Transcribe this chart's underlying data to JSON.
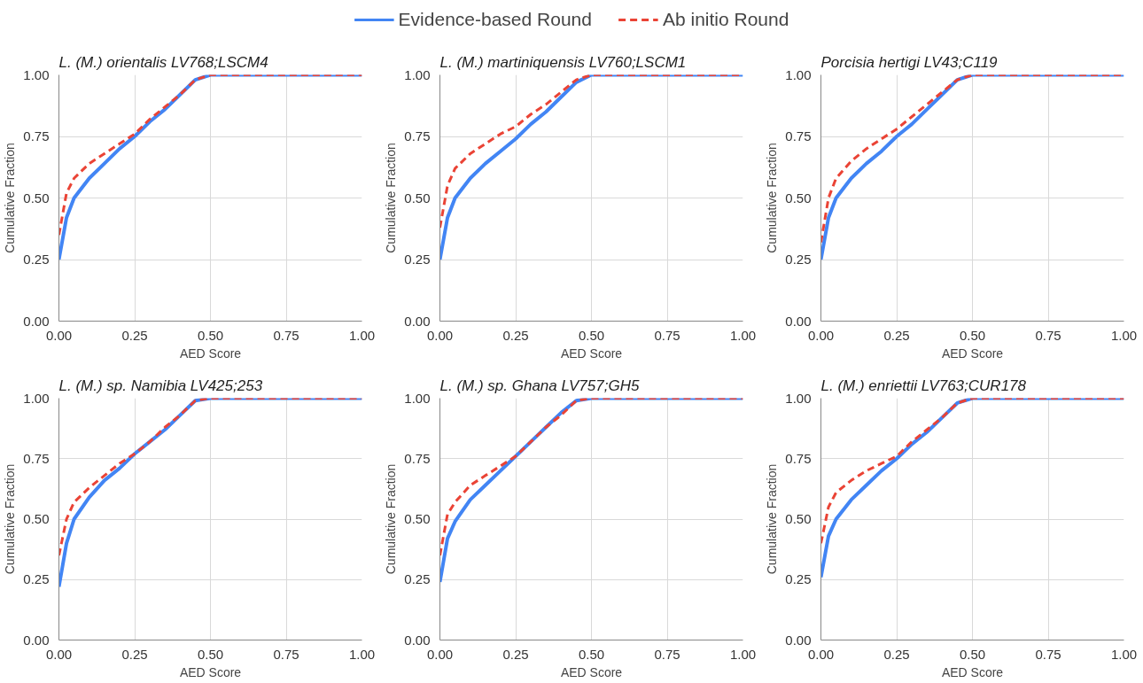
{
  "chart_data": [
    {
      "type": "line",
      "title": "L. (M.) orientalis LV768;LSCM4",
      "xlabel": "AED Score",
      "ylabel": "Cumulative Fraction",
      "legend": "top",
      "grid": true,
      "marker": "none",
      "x": [
        0,
        0.025,
        0.05,
        0.1,
        0.15,
        0.2,
        0.25,
        0.3,
        0.35,
        0.4,
        0.45,
        0.5,
        0.75,
        1.0
      ],
      "xlim": [
        0,
        1
      ],
      "ylim": [
        0,
        1
      ],
      "xticks": [
        {
          "value": 0,
          "label": "0.00"
        },
        {
          "value": 0.25,
          "label": "0.25"
        },
        {
          "value": 0.5,
          "label": "0.50"
        },
        {
          "value": 0.75,
          "label": "0.75"
        },
        {
          "value": 1,
          "label": "1.00"
        }
      ],
      "yticks": [
        {
          "value": 0,
          "label": "0.00"
        },
        {
          "value": 0.25,
          "label": "0.25"
        },
        {
          "value": 0.5,
          "label": "0.50"
        },
        {
          "value": 0.75,
          "label": "0.75"
        },
        {
          "value": 1,
          "label": "1.00"
        }
      ],
      "series": [
        {
          "name": "Evidence-based Round",
          "color": "#4285f4",
          "line_style": "solid",
          "values": [
            0.25,
            0.42,
            0.5,
            0.58,
            0.64,
            0.7,
            0.75,
            0.81,
            0.86,
            0.92,
            0.98,
            1.0,
            1.0,
            1.0
          ]
        },
        {
          "name": "Ab initio Round",
          "color": "#ea4335",
          "line_style": "dashed",
          "values": [
            0.35,
            0.52,
            0.58,
            0.64,
            0.68,
            0.72,
            0.76,
            0.82,
            0.87,
            0.92,
            0.98,
            1.0,
            1.0,
            1.0
          ]
        }
      ]
    },
    {
      "type": "line",
      "title": "L. (M.) martiniquensis LV760;LSCM1",
      "xlabel": "AED Score",
      "ylabel": "Cumulative Fraction",
      "grid": true,
      "marker": "none",
      "x": [
        0,
        0.025,
        0.05,
        0.1,
        0.15,
        0.2,
        0.25,
        0.3,
        0.35,
        0.4,
        0.45,
        0.5,
        0.75,
        1.0
      ],
      "xlim": [
        0,
        1
      ],
      "ylim": [
        0,
        1
      ],
      "xticks": [
        {
          "value": 0,
          "label": "0.00"
        },
        {
          "value": 0.25,
          "label": "0.25"
        },
        {
          "value": 0.5,
          "label": "0.50"
        },
        {
          "value": 0.75,
          "label": "0.75"
        },
        {
          "value": 1,
          "label": "1.00"
        }
      ],
      "yticks": [
        {
          "value": 0,
          "label": "0.00"
        },
        {
          "value": 0.25,
          "label": "0.25"
        },
        {
          "value": 0.5,
          "label": "0.50"
        },
        {
          "value": 0.75,
          "label": "0.75"
        },
        {
          "value": 1,
          "label": "1.00"
        }
      ],
      "series": [
        {
          "color": "#4285f4",
          "line_style": "solid",
          "values": [
            0.25,
            0.42,
            0.5,
            0.58,
            0.64,
            0.69,
            0.74,
            0.8,
            0.85,
            0.91,
            0.97,
            1.0,
            1.0,
            1.0
          ]
        },
        {
          "color": "#ea4335",
          "line_style": "dashed",
          "values": [
            0.38,
            0.55,
            0.62,
            0.68,
            0.72,
            0.76,
            0.79,
            0.84,
            0.88,
            0.93,
            0.98,
            1.0,
            1.0,
            1.0
          ]
        }
      ]
    },
    {
      "type": "line",
      "title": "Porcisia hertigi LV43;C119",
      "xlabel": "AED Score",
      "ylabel": "Cumulative Fraction",
      "grid": true,
      "marker": "none",
      "x": [
        0,
        0.025,
        0.05,
        0.1,
        0.15,
        0.2,
        0.25,
        0.3,
        0.35,
        0.4,
        0.45,
        0.5,
        0.75,
        1.0
      ],
      "xlim": [
        0,
        1
      ],
      "ylim": [
        0,
        1
      ],
      "xticks": [
        {
          "value": 0,
          "label": "0.00"
        },
        {
          "value": 0.25,
          "label": "0.25"
        },
        {
          "value": 0.5,
          "label": "0.50"
        },
        {
          "value": 0.75,
          "label": "0.75"
        },
        {
          "value": 1,
          "label": "1.00"
        }
      ],
      "yticks": [
        {
          "value": 0,
          "label": "0.00"
        },
        {
          "value": 0.25,
          "label": "0.25"
        },
        {
          "value": 0.5,
          "label": "0.50"
        },
        {
          "value": 0.75,
          "label": "0.75"
        },
        {
          "value": 1,
          "label": "1.00"
        }
      ],
      "series": [
        {
          "color": "#4285f4",
          "line_style": "solid",
          "values": [
            0.25,
            0.42,
            0.5,
            0.58,
            0.64,
            0.69,
            0.75,
            0.8,
            0.86,
            0.92,
            0.98,
            1.0,
            1.0,
            1.0
          ]
        },
        {
          "color": "#ea4335",
          "line_style": "dashed",
          "values": [
            0.32,
            0.5,
            0.58,
            0.65,
            0.7,
            0.74,
            0.78,
            0.83,
            0.88,
            0.93,
            0.98,
            1.0,
            1.0,
            1.0
          ]
        }
      ]
    },
    {
      "type": "line",
      "title": "L. (M.) sp. Namibia LV425;253",
      "xlabel": "AED Score",
      "ylabel": "Cumulative Fraction",
      "grid": true,
      "marker": "none",
      "x": [
        0,
        0.025,
        0.05,
        0.1,
        0.15,
        0.2,
        0.25,
        0.3,
        0.35,
        0.4,
        0.45,
        0.5,
        0.75,
        1.0
      ],
      "xlim": [
        0,
        1
      ],
      "ylim": [
        0,
        1
      ],
      "xticks": [
        {
          "value": 0,
          "label": "0.00"
        },
        {
          "value": 0.25,
          "label": "0.25"
        },
        {
          "value": 0.5,
          "label": "0.50"
        },
        {
          "value": 0.75,
          "label": "0.75"
        },
        {
          "value": 1,
          "label": "1.00"
        }
      ],
      "yticks": [
        {
          "value": 0,
          "label": "0.00"
        },
        {
          "value": 0.25,
          "label": "0.25"
        },
        {
          "value": 0.5,
          "label": "0.50"
        },
        {
          "value": 0.75,
          "label": "0.75"
        },
        {
          "value": 1,
          "label": "1.00"
        }
      ],
      "series": [
        {
          "color": "#4285f4",
          "line_style": "solid",
          "values": [
            0.22,
            0.4,
            0.5,
            0.59,
            0.66,
            0.71,
            0.77,
            0.82,
            0.87,
            0.93,
            0.99,
            1.0,
            1.0,
            1.0
          ]
        },
        {
          "color": "#ea4335",
          "line_style": "dashed",
          "values": [
            0.35,
            0.5,
            0.57,
            0.63,
            0.68,
            0.73,
            0.77,
            0.82,
            0.88,
            0.93,
            0.99,
            1.0,
            1.0,
            1.0
          ]
        }
      ]
    },
    {
      "type": "line",
      "title": "L. (M.) sp. Ghana LV757;GH5",
      "xlabel": "AED Score",
      "ylabel": "Cumulative Fraction",
      "grid": true,
      "marker": "none",
      "x": [
        0,
        0.025,
        0.05,
        0.1,
        0.15,
        0.2,
        0.25,
        0.3,
        0.35,
        0.4,
        0.45,
        0.5,
        0.75,
        1.0
      ],
      "xlim": [
        0,
        1
      ],
      "ylim": [
        0,
        1
      ],
      "xticks": [
        {
          "value": 0,
          "label": "0.00"
        },
        {
          "value": 0.25,
          "label": "0.25"
        },
        {
          "value": 0.5,
          "label": "0.50"
        },
        {
          "value": 0.75,
          "label": "0.75"
        },
        {
          "value": 1,
          "label": "1.00"
        }
      ],
      "yticks": [
        {
          "value": 0,
          "label": "0.00"
        },
        {
          "value": 0.25,
          "label": "0.25"
        },
        {
          "value": 0.5,
          "label": "0.50"
        },
        {
          "value": 0.75,
          "label": "0.75"
        },
        {
          "value": 1,
          "label": "1.00"
        }
      ],
      "series": [
        {
          "color": "#4285f4",
          "line_style": "solid",
          "values": [
            0.24,
            0.42,
            0.49,
            0.58,
            0.64,
            0.7,
            0.76,
            0.82,
            0.88,
            0.94,
            0.99,
            1.0,
            1.0,
            1.0
          ]
        },
        {
          "color": "#ea4335",
          "line_style": "dashed",
          "values": [
            0.35,
            0.52,
            0.57,
            0.64,
            0.68,
            0.72,
            0.76,
            0.82,
            0.88,
            0.93,
            0.99,
            1.0,
            1.0,
            1.0
          ]
        }
      ]
    },
    {
      "type": "line",
      "title": "L. (M.) enriettii LV763;CUR178",
      "xlabel": "AED Score",
      "ylabel": "Cumulative Fraction",
      "grid": true,
      "marker": "none",
      "x": [
        0,
        0.025,
        0.05,
        0.1,
        0.15,
        0.2,
        0.25,
        0.3,
        0.35,
        0.4,
        0.45,
        0.5,
        0.75,
        1.0
      ],
      "xlim": [
        0,
        1
      ],
      "ylim": [
        0,
        1
      ],
      "xticks": [
        {
          "value": 0,
          "label": "0.00"
        },
        {
          "value": 0.25,
          "label": "0.25"
        },
        {
          "value": 0.5,
          "label": "0.50"
        },
        {
          "value": 0.75,
          "label": "0.75"
        },
        {
          "value": 1,
          "label": "1.00"
        }
      ],
      "yticks": [
        {
          "value": 0,
          "label": "0.00"
        },
        {
          "value": 0.25,
          "label": "0.25"
        },
        {
          "value": 0.5,
          "label": "0.50"
        },
        {
          "value": 0.75,
          "label": "0.75"
        },
        {
          "value": 1,
          "label": "1.00"
        }
      ],
      "series": [
        {
          "color": "#4285f4",
          "line_style": "solid",
          "values": [
            0.26,
            0.43,
            0.5,
            0.58,
            0.64,
            0.7,
            0.75,
            0.81,
            0.86,
            0.92,
            0.98,
            1.0,
            1.0,
            1.0
          ]
        },
        {
          "color": "#ea4335",
          "line_style": "dashed",
          "values": [
            0.4,
            0.55,
            0.61,
            0.66,
            0.7,
            0.73,
            0.76,
            0.82,
            0.87,
            0.92,
            0.98,
            1.0,
            1.0,
            1.0
          ]
        }
      ]
    }
  ]
}
